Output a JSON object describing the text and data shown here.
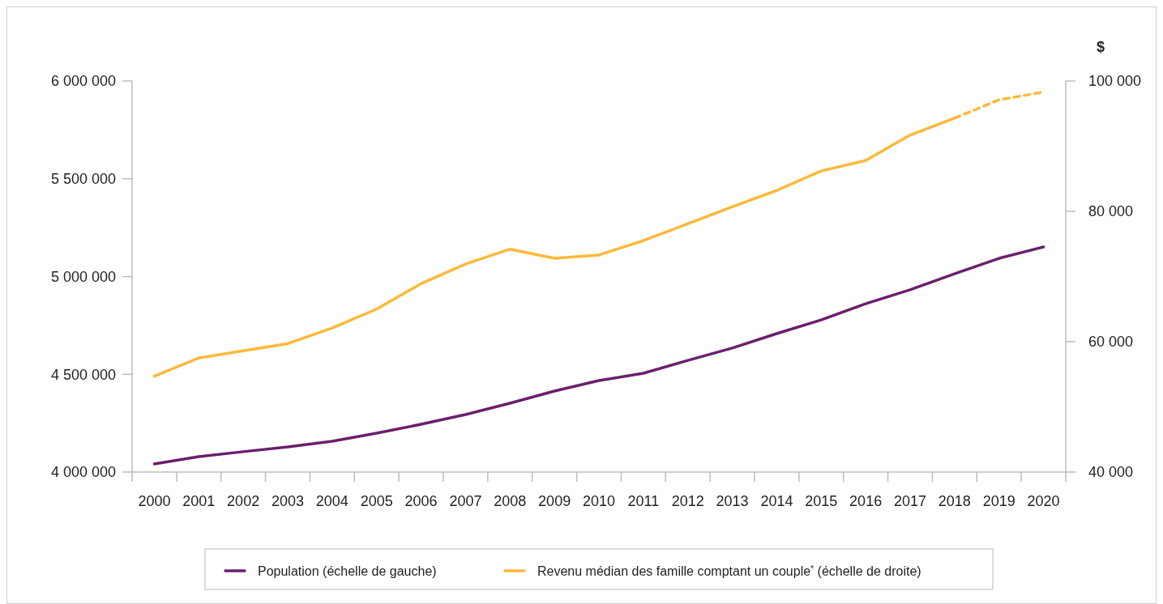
{
  "chart_data": {
    "type": "line",
    "y2label": "$",
    "categories": [
      "2000",
      "2001",
      "2002",
      "2003",
      "2004",
      "2005",
      "2006",
      "2007",
      "2008",
      "2009",
      "2010",
      "2011",
      "2012",
      "2013",
      "2014",
      "2015",
      "2016",
      "2017",
      "2018",
      "2019",
      "2020"
    ],
    "series": [
      {
        "name": "Population (échelle de gauche)",
        "color": "#6b1f6e",
        "values": [
          4041000,
          4079000,
          4104000,
          4128000,
          4157000,
          4199000,
          4244000,
          4294000,
          4352000,
          4414000,
          4468000,
          4505000,
          4571000,
          4634000,
          4708000,
          4778000,
          4861000,
          4932000,
          5014000,
          5093000,
          5151000
        ]
      },
      {
        "name": "Revenu médian des famille comptant un couple$^{*}$ (échelle de droite)",
        "color": "#fbb93a",
        "axis": "y2",
        "line_style": "solid",
        "values": [
          54700,
          57500,
          58600,
          59700,
          62100,
          65000,
          68900,
          71900,
          74200,
          72800,
          73300,
          75500,
          78100,
          80700,
          83200,
          86200,
          87800,
          91700,
          94300,
          null,
          null
        ]
      },
      {
        "color": "#fbb93a",
        "axis": "y2",
        "line_style": "dashed",
        "values": [
          null,
          null,
          null,
          null,
          null,
          null,
          null,
          null,
          null,
          null,
          null,
          null,
          null,
          null,
          null,
          null,
          null,
          null,
          94300,
          97100,
          98300
        ]
      }
    ],
    "ylim": [
      4000000,
      6000000
    ],
    "yticks": [
      {
        "value": 4000000,
        "label": "4 000 000"
      },
      {
        "value": 4500000,
        "label": "4 500 000"
      },
      {
        "value": 5000000,
        "label": "5 000 000"
      },
      {
        "value": 5500000,
        "label": "5 500 000"
      },
      {
        "value": 6000000,
        "label": "6 000 000"
      }
    ],
    "y2lim": [
      40000,
      100000
    ],
    "y2ticks": [
      {
        "value": 40000,
        "label": "40 000"
      },
      {
        "value": 60000,
        "label": "60 000"
      },
      {
        "value": 80000,
        "label": "80 000"
      },
      {
        "value": 100000,
        "label": "100 000"
      }
    ],
    "grid": false,
    "legend": "bottom",
    "marker": "none"
  }
}
